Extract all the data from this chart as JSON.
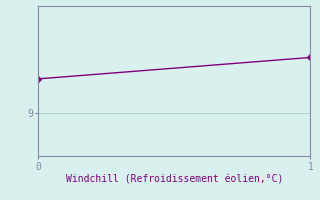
{
  "x": [
    0,
    1
  ],
  "y": [
    9.8,
    10.3
  ],
  "line_color": "#800080",
  "marker": "D",
  "marker_size": 3,
  "bg_color": "#d8f0ee",
  "grid_color": "#a8c8c4",
  "spine_color": "#8888aa",
  "tick_color": "#8888aa",
  "xlabel": "Windchill (Refroidissement éolien,°C)",
  "xlabel_color": "#800080",
  "xlabel_fontsize": 7,
  "tick_fontsize": 7,
  "tick_label_color": "#800080",
  "xlim": [
    0,
    1.0
  ],
  "ylim": [
    8.0,
    11.5
  ],
  "yticks": [
    9
  ],
  "xticks": [
    0,
    1
  ]
}
